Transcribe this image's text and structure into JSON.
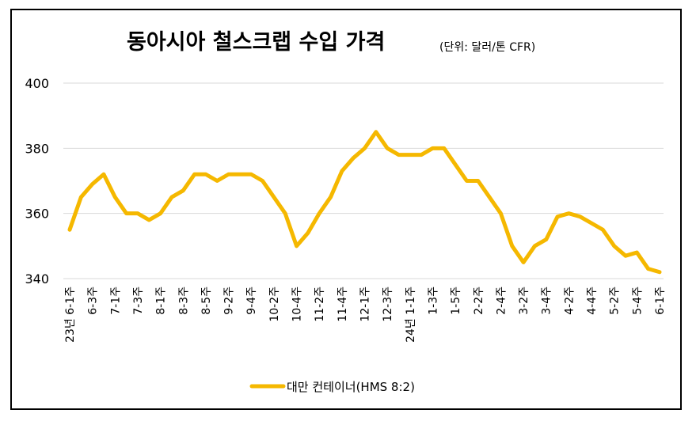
{
  "chart_data": {
    "type": "line",
    "title": "동아시아 철스크랩 수입 가격",
    "subtitle": "(단위: 달러/톤 CFR)",
    "categories": [
      "23년 6-1주",
      null,
      "6-3주",
      null,
      "7-1주",
      null,
      "7-3주",
      null,
      "8-1주",
      null,
      "8-3주",
      null,
      "8-5주",
      null,
      "9-2주",
      null,
      "9-4주",
      null,
      "10-2주",
      null,
      "10-4주",
      null,
      "11-2주",
      null,
      "11-4주",
      null,
      "12-1주",
      null,
      "12-3주",
      null,
      "24년 1-1주",
      null,
      "1-3주",
      null,
      "1-5주",
      null,
      "2-2주",
      null,
      "2-4주",
      null,
      "3-2주",
      null,
      "3-4주",
      null,
      "4-2주",
      null,
      "4-4주",
      null,
      "5-2주",
      null,
      "5-4주",
      null,
      "6-1주"
    ],
    "series": [
      {
        "name": "대만 컨테이너(HMS 8:2)",
        "color": "#f5b800",
        "values": [
          355,
          365,
          369,
          372,
          365,
          360,
          360,
          358,
          360,
          365,
          367,
          372,
          372,
          370,
          372,
          372,
          372,
          370,
          365,
          360,
          350,
          354,
          360,
          365,
          373,
          377,
          380,
          385,
          380,
          378,
          378,
          378,
          380,
          380,
          375,
          370,
          370,
          365,
          360,
          350,
          345,
          350,
          352,
          359,
          360,
          359,
          357,
          355,
          350,
          347,
          348,
          343,
          342
        ]
      }
    ],
    "ylim": [
      340,
      400
    ],
    "yticks": [
      340,
      360,
      380,
      400
    ],
    "grid": true,
    "legend": "bottom"
  }
}
